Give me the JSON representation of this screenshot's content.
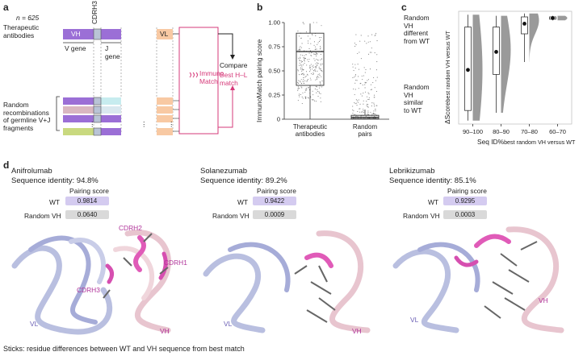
{
  "panels": {
    "a": "a",
    "b": "b",
    "c": "c",
    "d": "d"
  },
  "panel_a": {
    "n_label": "n = 625",
    "cdrh3_label": "CDRH3",
    "therapeutic_label": "Therapeutic\nantibodies",
    "vh_label": "VH",
    "vl_label": "VL",
    "v_gene_label": "V gene",
    "j_gene_label": "J\ngene",
    "immunomatch_label": "Immuno\nMatch",
    "compare_label": "Compare",
    "best_hl_label": "Best H–L\nmatch",
    "random_label": "Random\nrecombinations\nof germline V+J\nfragments",
    "dots": "⋮",
    "colors": {
      "vh": "#9b6fd6",
      "vl": "#f8c9a3",
      "cdrh3": "#b9c4d6",
      "accent": "#d63a7a"
    }
  },
  "panel_b": {
    "ylabel": "ImmunoMatch pairing score",
    "yticks": [
      "0",
      "0.25",
      "0.50",
      "0.75",
      "1.00"
    ],
    "xticks": [
      "Therapeutic\nantibodies",
      "Random\npairs"
    ]
  },
  "panel_c": {
    "ylabel_main": "ΔScore",
    "ylabel_sub": "best random VH versus WT",
    "xlabel_main": "Seq ID%",
    "xlabel_sub": "best random VH versus WT",
    "top_annot": "Random\nVH\ndifferent\nfrom WT",
    "bottom_annot": "Random\nVH\nsimilar\nto WT",
    "xticks": [
      "90–100",
      "80–90",
      "70–80",
      "60–70"
    ]
  },
  "chart_data": [
    {
      "type": "box",
      "panel": "b",
      "ylabel": "ImmunoMatch pairing score",
      "ylim": [
        0,
        1
      ],
      "categories": [
        "Therapeutic antibodies",
        "Random pairs"
      ],
      "boxes": [
        {
          "name": "Therapeutic antibodies",
          "min": 0.0,
          "q1": 0.35,
          "median": 0.7,
          "q3": 0.89,
          "max": 0.99
        },
        {
          "name": "Random pairs",
          "min": 0.0,
          "q1": 0.005,
          "median": 0.02,
          "q3": 0.04,
          "max": 0.1
        }
      ]
    },
    {
      "type": "box",
      "panel": "c",
      "categories": [
        "90–100",
        "80–90",
        "70–80",
        "60–70"
      ],
      "boxes": [
        {
          "name": "90–100",
          "min": 0.03,
          "q1": 0.12,
          "median": 0.48,
          "q3": 0.86,
          "max": 0.97,
          "mean": 0.48
        },
        {
          "name": "80–90",
          "min": 0.1,
          "q1": 0.44,
          "median": 0.66,
          "q3": 0.86,
          "max": 0.96,
          "mean": 0.64
        },
        {
          "name": "70–80",
          "min": 0.55,
          "q1": 0.8,
          "median": 0.92,
          "q3": 0.95,
          "max": 0.98,
          "mean": 0.89
        },
        {
          "name": "60–70",
          "min": 0.92,
          "q1": 0.93,
          "median": 0.94,
          "q3": 0.95,
          "max": 0.96,
          "mean": 0.94
        }
      ]
    }
  ],
  "panel_d": {
    "structures": [
      {
        "name": "Anifrolumab",
        "identity": "Sequence identity: 94.8%",
        "score_header": "Pairing score",
        "wt_label": "WT",
        "wt_score": "0.9814",
        "rand_label": "Random VH",
        "rand_score": "0.0640",
        "region_labels": [
          "CDRH2",
          "CDRH1",
          "CDRH3",
          "VL",
          "VH"
        ]
      },
      {
        "name": "Solanezumab",
        "identity": "Sequence identity: 89.2%",
        "score_header": "Pairing score",
        "wt_label": "WT",
        "wt_score": "0.9422",
        "rand_label": "Random VH",
        "rand_score": "0.0009",
        "region_labels": [
          "VL",
          "VH"
        ]
      },
      {
        "name": "Lebrikizumab",
        "identity": "Sequence identity: 85.1%",
        "score_header": "Pairing score",
        "wt_label": "WT",
        "wt_score": "0.9295",
        "rand_label": "Random VH",
        "rand_score": "0.0003",
        "region_labels": [
          "VL",
          "VH"
        ]
      }
    ],
    "caption": "Sticks: residue differences between WT and VH sequence from best match"
  }
}
